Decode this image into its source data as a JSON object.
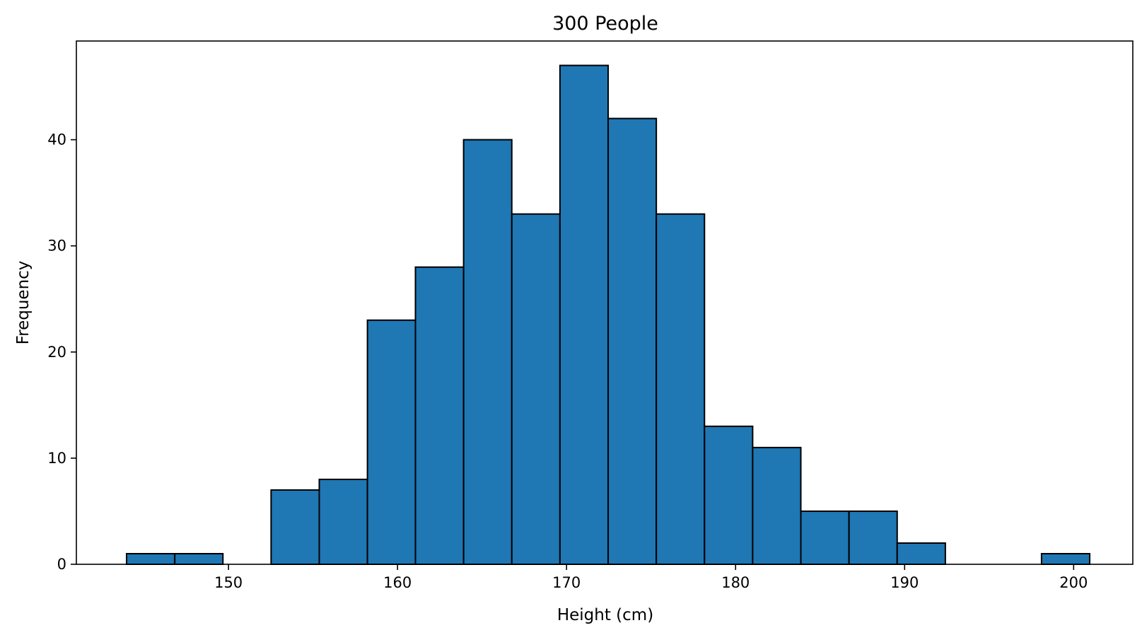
{
  "chart_data": {
    "type": "bar",
    "title": "300 People",
    "xlabel": "Height (cm)",
    "ylabel": "Frequency",
    "xlim": [
      141,
      203.5
    ],
    "ylim": [
      0,
      49.3
    ],
    "xticks": [
      150,
      160,
      170,
      180,
      190,
      200
    ],
    "yticks": [
      0,
      10,
      20,
      30,
      40
    ],
    "grid": false,
    "bar_color": "#1f77b4",
    "edge_color": "#000000",
    "bins": [
      {
        "x0": 143.97,
        "x1": 146.82,
        "count": 1
      },
      {
        "x0": 146.82,
        "x1": 149.67,
        "count": 1
      },
      {
        "x0": 149.67,
        "x1": 152.52,
        "count": 0
      },
      {
        "x0": 152.52,
        "x1": 155.37,
        "count": 7
      },
      {
        "x0": 155.37,
        "x1": 158.22,
        "count": 8
      },
      {
        "x0": 158.22,
        "x1": 161.06,
        "count": 23
      },
      {
        "x0": 161.06,
        "x1": 163.91,
        "count": 28
      },
      {
        "x0": 163.91,
        "x1": 166.76,
        "count": 40
      },
      {
        "x0": 166.76,
        "x1": 169.61,
        "count": 33
      },
      {
        "x0": 169.61,
        "x1": 172.46,
        "count": 47
      },
      {
        "x0": 172.46,
        "x1": 175.31,
        "count": 42
      },
      {
        "x0": 175.31,
        "x1": 178.16,
        "count": 33
      },
      {
        "x0": 178.16,
        "x1": 181.01,
        "count": 13
      },
      {
        "x0": 181.01,
        "x1": 183.86,
        "count": 11
      },
      {
        "x0": 183.86,
        "x1": 186.71,
        "count": 5
      },
      {
        "x0": 186.71,
        "x1": 189.56,
        "count": 5
      },
      {
        "x0": 189.56,
        "x1": 192.41,
        "count": 2
      },
      {
        "x0": 192.41,
        "x1": 195.25,
        "count": 0
      },
      {
        "x0": 195.25,
        "x1": 198.1,
        "count": 0
      },
      {
        "x0": 198.1,
        "x1": 200.95,
        "count": 1
      }
    ]
  }
}
